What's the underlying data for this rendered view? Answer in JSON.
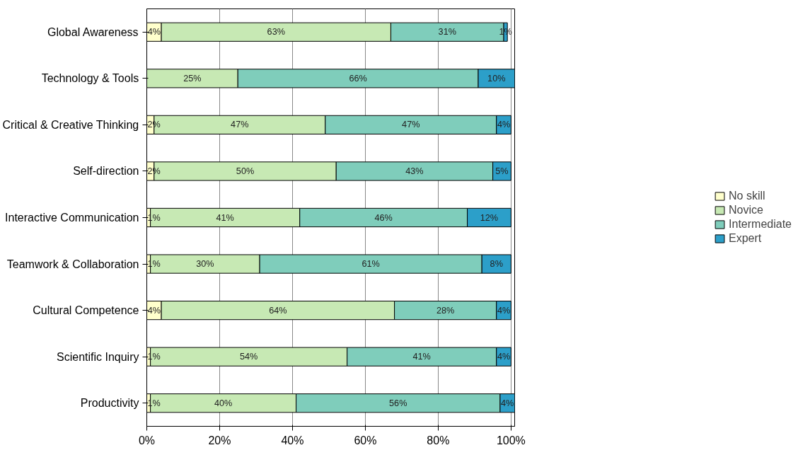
{
  "chart_data": {
    "type": "bar",
    "orientation": "horizontal",
    "stacked": true,
    "categories": [
      "Global Awareness",
      "Technology & Tools",
      "Critical & Creative Thinking",
      "Self-direction",
      "Interactive Communication",
      "Teamwork & Collaboration",
      "Cultural Competence",
      "Scientific Inquiry",
      "Productivity"
    ],
    "series": [
      {
        "name": "No skill",
        "color": "#ffffcc",
        "values": [
          4,
          0,
          2,
          2,
          1,
          1,
          4,
          1,
          1
        ],
        "value_labels": [
          "4%",
          null,
          "2%",
          "2%",
          "1%",
          "1%",
          "4%",
          "1%",
          "1%"
        ]
      },
      {
        "name": "Novice",
        "color": "#c7e9b4",
        "values": [
          63,
          25,
          47,
          50,
          41,
          30,
          64,
          54,
          40
        ],
        "value_labels": [
          "63%",
          "25%",
          "47%",
          "50%",
          "41%",
          "30%",
          "64%",
          "54%",
          "40%"
        ]
      },
      {
        "name": "Intermediate",
        "color": "#7fcdbb",
        "values": [
          31,
          66,
          47,
          43,
          46,
          61,
          28,
          41,
          56
        ],
        "value_labels": [
          "31%",
          "66%",
          "47%",
          "43%",
          "46%",
          "61%",
          "28%",
          "41%",
          "56%"
        ]
      },
      {
        "name": "Expert",
        "color": "#2c9fc9",
        "values": [
          1,
          10,
          4,
          5,
          12,
          8,
          4,
          4,
          4
        ],
        "value_labels": [
          "1%",
          "10%",
          "4%",
          "5%",
          "12%",
          "8%",
          "4%",
          "4%",
          "4%"
        ]
      }
    ],
    "xlim": [
      0,
      101
    ],
    "xticks": [
      {
        "value": 0,
        "label": "0%"
      },
      {
        "value": 20,
        "label": "20%"
      },
      {
        "value": 40,
        "label": "40%"
      },
      {
        "value": 60,
        "label": "60%"
      },
      {
        "value": 80,
        "label": "80%"
      },
      {
        "value": 100,
        "label": "100%"
      }
    ],
    "grid": "x",
    "legend": "right"
  }
}
